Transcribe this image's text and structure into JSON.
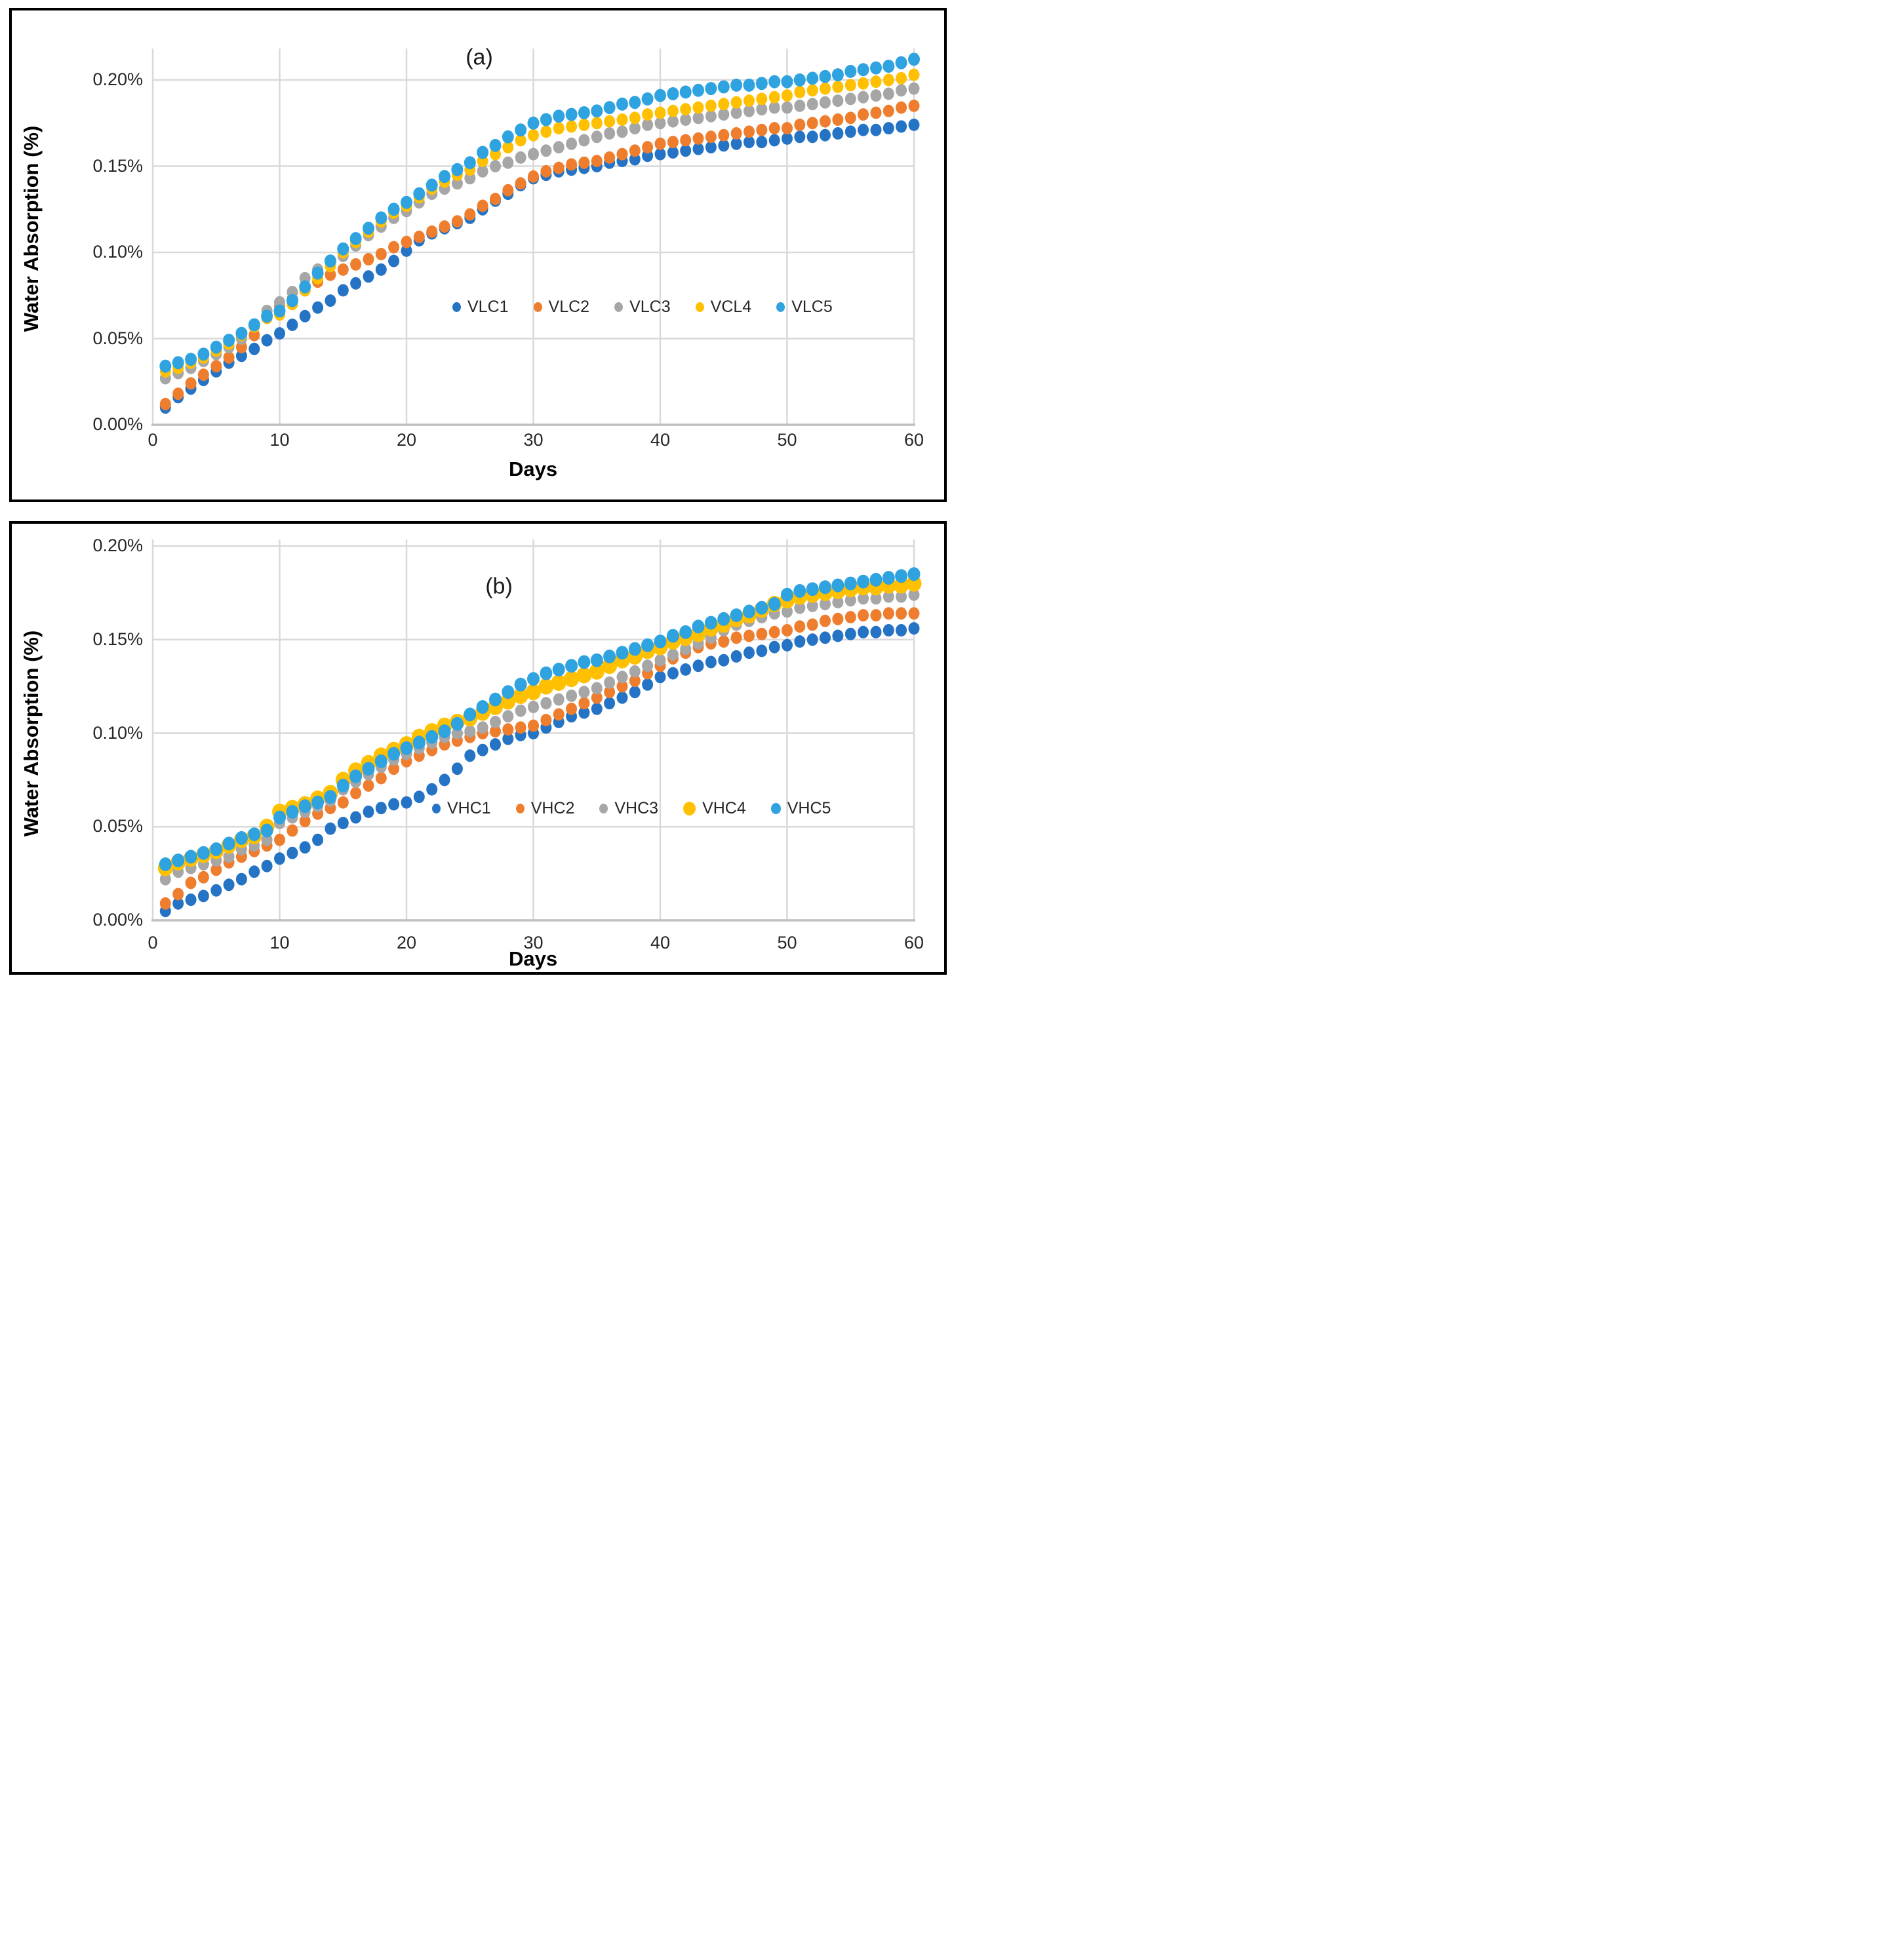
{
  "figure": {
    "background": "#ffffff",
    "panel_border_color": "#000000",
    "gridline_color": "#d9d9d9",
    "axis_line_color": "#bfbfbf",
    "tick_text_color": "#262626"
  },
  "panels": [
    {
      "id": "a",
      "label": "(a)",
      "y_axis_title": "Water Absorption (%)",
      "x_axis_title": "Days",
      "y_tick_labels": [
        "0.00%",
        "0.05%",
        "0.10%",
        "0.15%",
        "0.20%"
      ],
      "x_tick_labels": [
        "0",
        "10",
        "20",
        "30",
        "40",
        "50",
        "60"
      ],
      "legend": [
        {
          "label": "VLC1",
          "color": "#2573C4",
          "marker_d": 13
        },
        {
          "label": "VLC2",
          "color": "#EF7D2E",
          "marker_d": 13
        },
        {
          "label": "VLC3",
          "color": "#A6A6A6",
          "marker_d": 13
        },
        {
          "label": "VCL4",
          "color": "#FFC002",
          "marker_d": 13
        },
        {
          "label": "VLC5",
          "color": "#2EA3DF",
          "marker_d": 13
        }
      ]
    },
    {
      "id": "b",
      "label": "(b)",
      "y_axis_title": "Water Absorption (%)",
      "x_axis_title": "Days",
      "y_tick_labels": [
        "0.00%",
        "0.05%",
        "0.10%",
        "0.15%",
        "0.20%"
      ],
      "x_tick_labels": [
        "0",
        "10",
        "20",
        "30",
        "40",
        "50",
        "60"
      ],
      "legend": [
        {
          "label": "VHC1",
          "color": "#2573C4",
          "marker_d": 13
        },
        {
          "label": "VHC2",
          "color": "#EF7D2E",
          "marker_d": 13
        },
        {
          "label": "VHC3",
          "color": "#A6A6A6",
          "marker_d": 13
        },
        {
          "label": "VHC4",
          "color": "#FFC002",
          "marker_d": 19
        },
        {
          "label": "VHC5",
          "color": "#2EA3DF",
          "marker_d": 15
        }
      ]
    }
  ],
  "chart_data": [
    {
      "type": "scatter",
      "panel": "a",
      "title": "(a)",
      "xlabel": "Days",
      "ylabel": "Water Absorption (%)",
      "x_unit": "days",
      "y_unit": "percent",
      "xlim": [
        0,
        60
      ],
      "ylim": [
        0,
        0.218
      ],
      "x_ticks": [
        0,
        10,
        20,
        30,
        40,
        50,
        60
      ],
      "y_ticks": [
        0,
        0.05,
        0.1,
        0.15,
        0.2
      ],
      "grid": true,
      "legend_position": "inside middle-right",
      "x": [
        1,
        2,
        3,
        4,
        5,
        6,
        7,
        8,
        9,
        10,
        11,
        12,
        13,
        14,
        15,
        16,
        17,
        18,
        19,
        20,
        21,
        22,
        23,
        24,
        25,
        26,
        27,
        28,
        29,
        30,
        31,
        32,
        33,
        34,
        35,
        36,
        37,
        38,
        39,
        40,
        41,
        42,
        43,
        44,
        45,
        46,
        47,
        48,
        49,
        50,
        51,
        52,
        53,
        54,
        55,
        56,
        57,
        58,
        59,
        60
      ],
      "series": [
        {
          "name": "VLC1",
          "color": "#2573C4",
          "marker_rx": 8.5,
          "marker_ry": 9.5,
          "values": [
            0.01,
            0.016,
            0.021,
            0.026,
            0.031,
            0.036,
            0.04,
            0.044,
            0.049,
            0.053,
            0.058,
            0.063,
            0.068,
            0.072,
            0.078,
            0.082,
            0.086,
            0.09,
            0.095,
            0.101,
            0.107,
            0.111,
            0.114,
            0.117,
            0.12,
            0.125,
            0.13,
            0.134,
            0.139,
            0.143,
            0.145,
            0.147,
            0.148,
            0.149,
            0.15,
            0.152,
            0.153,
            0.154,
            0.156,
            0.157,
            0.158,
            0.159,
            0.16,
            0.161,
            0.162,
            0.163,
            0.164,
            0.164,
            0.165,
            0.166,
            0.167,
            0.167,
            0.168,
            0.169,
            0.17,
            0.171,
            0.171,
            0.172,
            0.173,
            0.174
          ]
        },
        {
          "name": "VLC2",
          "color": "#EF7D2E",
          "marker_rx": 8.5,
          "marker_ry": 9.5,
          "values": [
            0.012,
            0.018,
            0.024,
            0.029,
            0.034,
            0.039,
            0.045,
            0.052,
            0.062,
            0.069,
            0.073,
            0.078,
            0.083,
            0.087,
            0.09,
            0.093,
            0.096,
            0.099,
            0.103,
            0.106,
            0.109,
            0.112,
            0.115,
            0.118,
            0.122,
            0.127,
            0.131,
            0.136,
            0.14,
            0.144,
            0.147,
            0.149,
            0.151,
            0.152,
            0.153,
            0.155,
            0.157,
            0.159,
            0.161,
            0.163,
            0.164,
            0.165,
            0.166,
            0.167,
            0.168,
            0.169,
            0.17,
            0.171,
            0.172,
            0.172,
            0.174,
            0.175,
            0.176,
            0.177,
            0.178,
            0.18,
            0.181,
            0.182,
            0.184,
            0.185
          ]
        },
        {
          "name": "VLC3",
          "color": "#A6A6A6",
          "marker_rx": 8.5,
          "marker_ry": 9.5,
          "values": [
            0.027,
            0.03,
            0.033,
            0.037,
            0.041,
            0.045,
            0.05,
            0.057,
            0.066,
            0.071,
            0.077,
            0.085,
            0.09,
            0.094,
            0.098,
            0.104,
            0.11,
            0.115,
            0.12,
            0.124,
            0.129,
            0.134,
            0.137,
            0.14,
            0.143,
            0.147,
            0.15,
            0.152,
            0.155,
            0.157,
            0.159,
            0.161,
            0.163,
            0.165,
            0.167,
            0.169,
            0.17,
            0.172,
            0.174,
            0.175,
            0.176,
            0.177,
            0.178,
            0.179,
            0.18,
            0.181,
            0.182,
            0.183,
            0.184,
            0.184,
            0.185,
            0.186,
            0.187,
            0.188,
            0.189,
            0.19,
            0.191,
            0.192,
            0.194,
            0.195
          ]
        },
        {
          "name": "VCL4",
          "color": "#FFC002",
          "marker_rx": 8.5,
          "marker_ry": 9.5,
          "values": [
            0.031,
            0.033,
            0.036,
            0.039,
            0.043,
            0.047,
            0.052,
            0.057,
            0.062,
            0.064,
            0.07,
            0.078,
            0.085,
            0.092,
            0.1,
            0.106,
            0.112,
            0.118,
            0.123,
            0.127,
            0.132,
            0.137,
            0.141,
            0.145,
            0.148,
            0.153,
            0.157,
            0.161,
            0.165,
            0.168,
            0.17,
            0.172,
            0.173,
            0.174,
            0.175,
            0.176,
            0.177,
            0.178,
            0.18,
            0.181,
            0.182,
            0.183,
            0.184,
            0.185,
            0.186,
            0.187,
            0.188,
            0.189,
            0.19,
            0.191,
            0.193,
            0.194,
            0.195,
            0.196,
            0.197,
            0.198,
            0.199,
            0.2,
            0.201,
            0.203
          ]
        },
        {
          "name": "VLC5",
          "color": "#2EA3DF",
          "marker_rx": 9,
          "marker_ry": 10,
          "values": [
            0.034,
            0.036,
            0.038,
            0.041,
            0.045,
            0.049,
            0.053,
            0.058,
            0.063,
            0.066,
            0.072,
            0.08,
            0.088,
            0.095,
            0.102,
            0.108,
            0.114,
            0.12,
            0.125,
            0.129,
            0.134,
            0.139,
            0.144,
            0.148,
            0.152,
            0.158,
            0.162,
            0.167,
            0.171,
            0.175,
            0.177,
            0.179,
            0.18,
            0.181,
            0.182,
            0.184,
            0.186,
            0.187,
            0.189,
            0.191,
            0.192,
            0.193,
            0.194,
            0.195,
            0.196,
            0.197,
            0.197,
            0.198,
            0.199,
            0.199,
            0.2,
            0.201,
            0.202,
            0.203,
            0.205,
            0.206,
            0.207,
            0.208,
            0.21,
            0.212
          ]
        }
      ]
    },
    {
      "type": "scatter",
      "panel": "b",
      "title": "(b)",
      "xlabel": "Days",
      "ylabel": "Water Absorption (%)",
      "x_unit": "days",
      "y_unit": "percent",
      "xlim": [
        0,
        60
      ],
      "ylim": [
        0,
        0.204
      ],
      "x_ticks": [
        0,
        10,
        20,
        30,
        40,
        50,
        60
      ],
      "y_ticks": [
        0,
        0.05,
        0.1,
        0.15,
        0.2
      ],
      "grid": true,
      "legend_position": "inside middle-right",
      "x": [
        1,
        2,
        3,
        4,
        5,
        6,
        7,
        8,
        9,
        10,
        11,
        12,
        13,
        14,
        15,
        16,
        17,
        18,
        19,
        20,
        21,
        22,
        23,
        24,
        25,
        26,
        27,
        28,
        29,
        30,
        31,
        32,
        33,
        34,
        35,
        36,
        37,
        38,
        39,
        40,
        41,
        42,
        43,
        44,
        45,
        46,
        47,
        48,
        49,
        50,
        51,
        52,
        53,
        54,
        55,
        56,
        57,
        58,
        59,
        60
      ],
      "series": [
        {
          "name": "VHC1",
          "color": "#2573C4",
          "marker_rx": 8.5,
          "marker_ry": 9.5,
          "values": [
            0.005,
            0.009,
            0.011,
            0.013,
            0.016,
            0.019,
            0.022,
            0.026,
            0.029,
            0.033,
            0.036,
            0.039,
            0.043,
            0.049,
            0.052,
            0.055,
            0.058,
            0.06,
            0.062,
            0.063,
            0.066,
            0.07,
            0.075,
            0.081,
            0.088,
            0.091,
            0.094,
            0.097,
            0.099,
            0.1,
            0.103,
            0.106,
            0.109,
            0.111,
            0.113,
            0.116,
            0.119,
            0.122,
            0.126,
            0.13,
            0.132,
            0.134,
            0.136,
            0.138,
            0.139,
            0.141,
            0.143,
            0.144,
            0.146,
            0.147,
            0.149,
            0.15,
            0.151,
            0.152,
            0.153,
            0.154,
            0.154,
            0.155,
            0.155,
            0.156
          ]
        },
        {
          "name": "VHC2",
          "color": "#EF7D2E",
          "marker_rx": 8.5,
          "marker_ry": 9.5,
          "values": [
            0.009,
            0.014,
            0.02,
            0.023,
            0.027,
            0.031,
            0.034,
            0.037,
            0.04,
            0.043,
            0.048,
            0.053,
            0.057,
            0.06,
            0.063,
            0.068,
            0.072,
            0.076,
            0.081,
            0.085,
            0.088,
            0.091,
            0.094,
            0.096,
            0.098,
            0.1,
            0.101,
            0.102,
            0.103,
            0.104,
            0.107,
            0.11,
            0.113,
            0.116,
            0.119,
            0.122,
            0.125,
            0.128,
            0.132,
            0.136,
            0.14,
            0.143,
            0.146,
            0.148,
            0.149,
            0.151,
            0.152,
            0.153,
            0.154,
            0.155,
            0.157,
            0.158,
            0.16,
            0.161,
            0.162,
            0.163,
            0.163,
            0.164,
            0.164,
            0.164
          ]
        },
        {
          "name": "VHC3",
          "color": "#A6A6A6",
          "marker_rx": 8.5,
          "marker_ry": 9.5,
          "values": [
            0.022,
            0.026,
            0.028,
            0.03,
            0.032,
            0.034,
            0.038,
            0.04,
            0.043,
            0.052,
            0.055,
            0.058,
            0.061,
            0.064,
            0.07,
            0.074,
            0.078,
            0.082,
            0.086,
            0.089,
            0.092,
            0.095,
            0.098,
            0.1,
            0.101,
            0.103,
            0.106,
            0.109,
            0.112,
            0.114,
            0.116,
            0.118,
            0.12,
            0.122,
            0.124,
            0.127,
            0.13,
            0.133,
            0.136,
            0.139,
            0.142,
            0.145,
            0.148,
            0.151,
            0.155,
            0.158,
            0.16,
            0.162,
            0.164,
            0.165,
            0.167,
            0.168,
            0.169,
            0.17,
            0.171,
            0.172,
            0.172,
            0.173,
            0.173,
            0.174
          ]
        },
        {
          "name": "VHC4",
          "color": "#FFC002",
          "marker_rx": 11.5,
          "marker_ry": 12.5,
          "values": [
            0.028,
            0.031,
            0.033,
            0.035,
            0.037,
            0.04,
            0.043,
            0.045,
            0.05,
            0.058,
            0.06,
            0.062,
            0.065,
            0.068,
            0.075,
            0.08,
            0.084,
            0.088,
            0.091,
            0.094,
            0.098,
            0.101,
            0.104,
            0.106,
            0.108,
            0.111,
            0.114,
            0.117,
            0.12,
            0.122,
            0.125,
            0.127,
            0.129,
            0.131,
            0.133,
            0.136,
            0.139,
            0.141,
            0.144,
            0.146,
            0.149,
            0.151,
            0.153,
            0.156,
            0.158,
            0.161,
            0.163,
            0.166,
            0.169,
            0.171,
            0.173,
            0.174,
            0.175,
            0.176,
            0.177,
            0.178,
            0.178,
            0.179,
            0.179,
            0.18
          ]
        },
        {
          "name": "VHC5",
          "color": "#2EA3DF",
          "marker_rx": 9.5,
          "marker_ry": 10.5,
          "values": [
            0.03,
            0.032,
            0.034,
            0.036,
            0.038,
            0.041,
            0.044,
            0.046,
            0.048,
            0.055,
            0.058,
            0.061,
            0.063,
            0.066,
            0.072,
            0.077,
            0.081,
            0.085,
            0.089,
            0.092,
            0.095,
            0.098,
            0.101,
            0.105,
            0.11,
            0.114,
            0.118,
            0.122,
            0.126,
            0.129,
            0.132,
            0.134,
            0.136,
            0.138,
            0.139,
            0.141,
            0.143,
            0.145,
            0.147,
            0.149,
            0.152,
            0.154,
            0.157,
            0.159,
            0.161,
            0.163,
            0.165,
            0.167,
            0.169,
            0.174,
            0.176,
            0.177,
            0.178,
            0.179,
            0.18,
            0.181,
            0.182,
            0.183,
            0.184,
            0.185
          ]
        }
      ]
    }
  ]
}
